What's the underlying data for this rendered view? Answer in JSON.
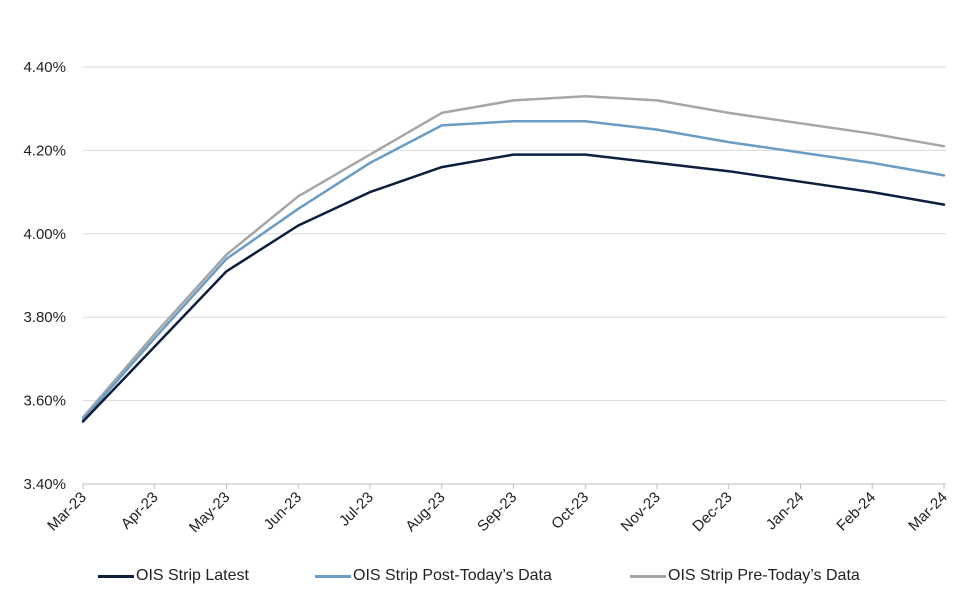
{
  "chart_data": {
    "type": "line",
    "title": "",
    "xlabel": "",
    "ylabel": "",
    "categories": [
      "Mar-23",
      "Apr-23",
      "May-23",
      "Jun-23",
      "Jul-23",
      "Aug-23",
      "Sep-23",
      "Oct-23",
      "Nov-23",
      "Dec-23",
      "Jan-24",
      "Feb-24",
      "Mar-24"
    ],
    "ylim": [
      3.4,
      4.4
    ],
    "yticks": [
      3.4,
      3.6,
      3.8,
      4.0,
      4.2,
      4.4
    ],
    "ytick_labels": [
      "3.40%",
      "3.60%",
      "3.80%",
      "4.00%",
      "4.20%",
      "4.40%"
    ],
    "grid": true,
    "legend_position": "bottom",
    "series": [
      {
        "name": "OIS Strip Latest",
        "color": "#0d1f3c",
        "values": [
          3.55,
          3.73,
          3.91,
          4.02,
          4.1,
          4.16,
          4.19,
          4.19,
          4.17,
          4.15,
          4.125,
          4.1,
          4.07
        ]
      },
      {
        "name": "OIS Strip Post-Today’s Data",
        "color": "#6a9cc4",
        "values": [
          3.555,
          3.75,
          3.94,
          4.06,
          4.17,
          4.26,
          4.27,
          4.27,
          4.25,
          4.22,
          4.195,
          4.17,
          4.14
        ]
      },
      {
        "name": "OIS Strip Pre-Today’s Data",
        "color": "#a6a6a6",
        "values": [
          3.56,
          3.76,
          3.95,
          4.09,
          4.19,
          4.29,
          4.32,
          4.33,
          4.32,
          4.29,
          4.265,
          4.24,
          4.21
        ]
      }
    ]
  }
}
